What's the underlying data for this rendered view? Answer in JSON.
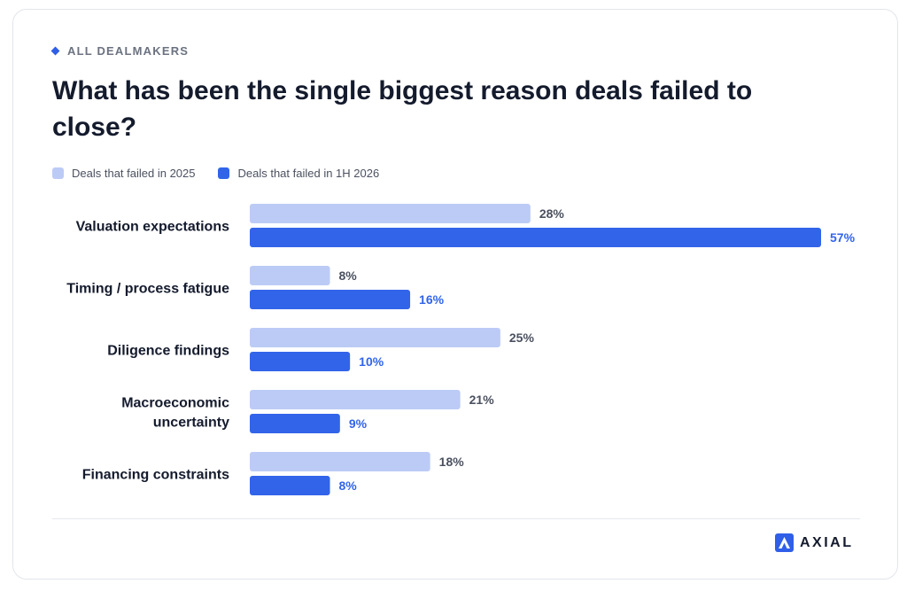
{
  "header": {
    "eyebrow": "ALL DEALMAKERS",
    "title": "What has been the single biggest reason deals failed to close?"
  },
  "colors": {
    "accent": "#2f5fe8",
    "series_2025": "#bccbf6",
    "series_2026": "#3264ea",
    "label_2025": "#4b5160",
    "label_2026": "#3264ea"
  },
  "chart_data": {
    "type": "bar",
    "orientation": "horizontal",
    "categories": [
      "Valuation expectations",
      "Timing / process fatigue",
      "Diligence findings",
      "Macroeconomic\nuncertainty",
      "Financing constraints"
    ],
    "series": [
      {
        "name": "Deals that failed in 2025",
        "values": [
          28,
          8,
          25,
          21,
          18
        ]
      },
      {
        "name": "Deals that failed in 1H 2026",
        "values": [
          57,
          16,
          10,
          9,
          8
        ]
      }
    ],
    "unit": "%",
    "xlim": [
      0,
      57
    ],
    "legend": "top-left",
    "grid": false
  },
  "brand": {
    "name": "AXIAL"
  }
}
